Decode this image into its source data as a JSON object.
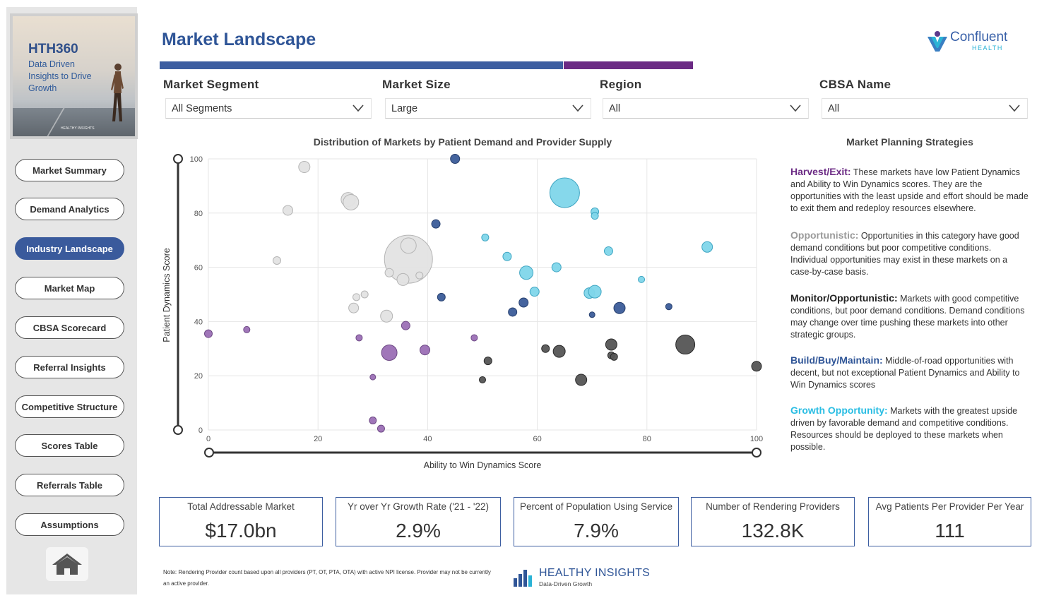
{
  "sidebar": {
    "brand": {
      "title": "HTH360",
      "subtitle": "Data Driven Insights to Drive Growth",
      "mini_logo": "HEALTHY INSIGHTS"
    },
    "nav": [
      {
        "label": "Market Summary",
        "active": false
      },
      {
        "label": "Demand Analytics",
        "active": false
      },
      {
        "label": "Industry Landscape",
        "active": true
      },
      {
        "label": "Market Map",
        "active": false
      },
      {
        "label": "CBSA Scorecard",
        "active": false
      },
      {
        "label": "Referral Insights",
        "active": false
      },
      {
        "label": "Competitive Structure",
        "active": false
      },
      {
        "label": "Scores Table",
        "active": false
      },
      {
        "label": "Referrals Table",
        "active": false
      },
      {
        "label": "Assumptions",
        "active": false
      }
    ],
    "home_icon": "home-icon"
  },
  "header": {
    "title": "Market Landscape",
    "logo": {
      "name": "Confluent",
      "sub": "HEALTH"
    }
  },
  "filters": [
    {
      "label": "Market Segment",
      "value": "All Segments"
    },
    {
      "label": "Market Size",
      "value": "Large"
    },
    {
      "label": "Region",
      "value": "All"
    },
    {
      "label": "CBSA Name",
      "value": "All"
    }
  ],
  "colors": {
    "harvest": "#9b6fb5",
    "opportunistic": "#e3e3e3",
    "monitor": "#555555",
    "build": "#3b5c99",
    "growth": "#7fd6ea",
    "accent_blue": "#3d5ea1",
    "accent_purple": "#6b2a84"
  },
  "chart_data": {
    "type": "scatter",
    "title": "Distribution of Markets by Patient Demand and Provider Supply",
    "xlabel": "Ability to Win Dynamics Score",
    "ylabel": "Patient Dynamics Score",
    "xlim": [
      0,
      100
    ],
    "ylim": [
      0,
      100
    ],
    "xticks": [
      0,
      20,
      40,
      60,
      80,
      100
    ],
    "yticks": [
      0,
      20,
      40,
      60,
      80,
      100
    ],
    "grid": true,
    "series": [
      {
        "group": "opportunistic",
        "points": [
          {
            "x": 17.5,
            "y": 97,
            "s": 8
          },
          {
            "x": 14.5,
            "y": 81,
            "s": 7
          },
          {
            "x": 12.5,
            "y": 62.5,
            "s": 5.5
          },
          {
            "x": 25.5,
            "y": 85,
            "s": 10
          },
          {
            "x": 26,
            "y": 84,
            "s": 11
          },
          {
            "x": 36.5,
            "y": 63,
            "s": 34
          },
          {
            "x": 36.5,
            "y": 68,
            "s": 11
          },
          {
            "x": 33,
            "y": 58,
            "s": 6
          },
          {
            "x": 35.5,
            "y": 55.5,
            "s": 8.5
          },
          {
            "x": 38.5,
            "y": 57,
            "s": 5
          },
          {
            "x": 27,
            "y": 49,
            "s": 5
          },
          {
            "x": 28.5,
            "y": 50,
            "s": 5
          },
          {
            "x": 26.5,
            "y": 45,
            "s": 7
          },
          {
            "x": 32.5,
            "y": 42,
            "s": 8.5
          }
        ]
      },
      {
        "group": "build",
        "points": [
          {
            "x": 45,
            "y": 100,
            "s": 6.5
          },
          {
            "x": 41.5,
            "y": 76,
            "s": 6
          },
          {
            "x": 42.5,
            "y": 49,
            "s": 5.5
          },
          {
            "x": 55.5,
            "y": 43.5,
            "s": 6
          },
          {
            "x": 57.5,
            "y": 47,
            "s": 6.5
          },
          {
            "x": 70,
            "y": 42.5,
            "s": 4
          },
          {
            "x": 75,
            "y": 45,
            "s": 8
          },
          {
            "x": 84,
            "y": 45.5,
            "s": 4.5
          }
        ]
      },
      {
        "group": "growth",
        "points": [
          {
            "x": 65,
            "y": 87.5,
            "s": 21
          },
          {
            "x": 70.5,
            "y": 80.5,
            "s": 5.5
          },
          {
            "x": 70.5,
            "y": 79,
            "s": 5
          },
          {
            "x": 50.5,
            "y": 71,
            "s": 5
          },
          {
            "x": 54.5,
            "y": 64,
            "s": 6
          },
          {
            "x": 58,
            "y": 58,
            "s": 9.5
          },
          {
            "x": 63.5,
            "y": 60,
            "s": 6.5
          },
          {
            "x": 59.5,
            "y": 51,
            "s": 6.5
          },
          {
            "x": 73,
            "y": 66,
            "s": 6
          },
          {
            "x": 91,
            "y": 67.5,
            "s": 7.5
          },
          {
            "x": 79,
            "y": 55.5,
            "s": 4.5
          },
          {
            "x": 69.5,
            "y": 50.5,
            "s": 7.5
          },
          {
            "x": 70.5,
            "y": 51,
            "s": 9
          }
        ]
      },
      {
        "group": "monitor",
        "points": [
          {
            "x": 61.5,
            "y": 30,
            "s": 5.5
          },
          {
            "x": 64,
            "y": 29,
            "s": 8.5
          },
          {
            "x": 51,
            "y": 25.5,
            "s": 5.5
          },
          {
            "x": 50,
            "y": 18.5,
            "s": 4.5
          },
          {
            "x": 68,
            "y": 18.5,
            "s": 8
          },
          {
            "x": 73.5,
            "y": 31.5,
            "s": 8
          },
          {
            "x": 73.5,
            "y": 27.5,
            "s": 5
          },
          {
            "x": 74,
            "y": 27,
            "s": 5
          },
          {
            "x": 87,
            "y": 31.5,
            "s": 13.5
          },
          {
            "x": 100,
            "y": 23.5,
            "s": 7
          }
        ]
      },
      {
        "group": "harvest",
        "points": [
          {
            "x": 0,
            "y": 35.5,
            "s": 5.5
          },
          {
            "x": 7,
            "y": 37,
            "s": 4.5
          },
          {
            "x": 27.5,
            "y": 34,
            "s": 4.5
          },
          {
            "x": 36,
            "y": 38.5,
            "s": 6
          },
          {
            "x": 33,
            "y": 28.5,
            "s": 11
          },
          {
            "x": 39.5,
            "y": 29.5,
            "s": 7
          },
          {
            "x": 48.5,
            "y": 34,
            "s": 4.5
          },
          {
            "x": 30,
            "y": 19.5,
            "s": 4
          },
          {
            "x": 30,
            "y": 3.5,
            "s": 5
          },
          {
            "x": 31.5,
            "y": 0.5,
            "s": 5
          }
        ]
      }
    ]
  },
  "strategies": {
    "title": "Market Planning Strategies",
    "items": [
      {
        "key": "harvest",
        "head": "Harvest/Exit:",
        "color": "#6b2a84",
        "text": "These markets have low Patient Dynamics and Ability to Win Dynamics scores. They are the opportunities with the least upside and effort should be made to exit them and redeploy resources elsewhere."
      },
      {
        "key": "opportunistic",
        "head": "Opportunistic:",
        "color": "#9a9a9a",
        "text": "Opportunities in this category have good demand conditions but poor competitive conditions. Individual opportunities may exist in these markets on a case-by-case basis."
      },
      {
        "key": "monitor",
        "head": "Monitor/Opportunistic:",
        "color": "#222222",
        "text": "Markets with good competitive conditions, but poor demand conditions. Demand conditions may change over time pushing these markets into other strategic groups."
      },
      {
        "key": "build",
        "head": "Build/Buy/Maintain:",
        "color": "#2f5597",
        "text": "Middle-of-road opportunities with decent, but not exceptional Patient Dynamics and Ability to Win Dynamics scores"
      },
      {
        "key": "growth",
        "head": "Growth Opportunity:",
        "color": "#29bde3",
        "text": "Markets with the greatest upside driven by favorable demand and competitive conditions. Resources should be deployed to these markets when possible."
      }
    ]
  },
  "kpis": [
    {
      "label": "Total Addressable Market",
      "value": "$17.0bn"
    },
    {
      "label": "Yr over Yr Growth Rate ('21 - '22)",
      "value": "2.9%"
    },
    {
      "label": "Percent of Population Using Service",
      "value": "7.9%"
    },
    {
      "label": "Number of Rendering Providers",
      "value": "132.8K"
    },
    {
      "label": "Avg Patients Per Provider Per Year",
      "value": "111"
    }
  ],
  "footer": {
    "note": "Note: Rendering Provider count based upon all providers (PT, OT, PTA, OTA) with active NPI license. Provider may not be currently an active provider.",
    "logo_name": "HEALTHY INSIGHTS",
    "logo_sub": "Data-Driven Growth"
  }
}
